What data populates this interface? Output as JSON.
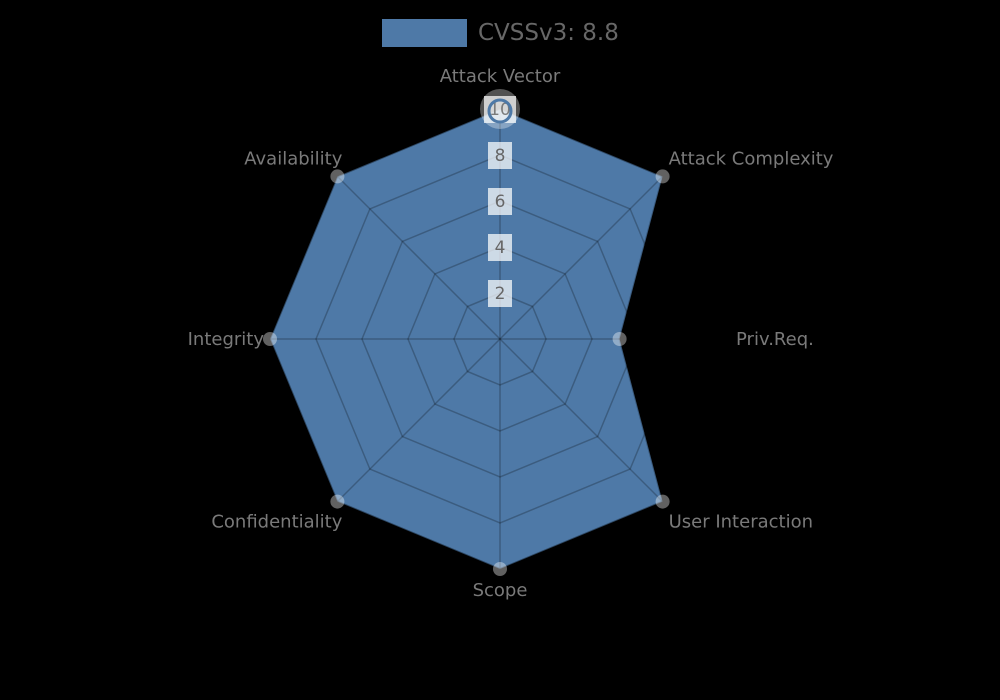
{
  "page": {
    "background": "#000000"
  },
  "legend": {
    "label": "CVSSv3: 8.8",
    "swatch_color": "#4e79a7",
    "text_color": "#676767"
  },
  "chart_data": {
    "type": "radar",
    "title": "",
    "categories": [
      "Attack Vector",
      "Attack Complexity",
      "Priv.Req.",
      "User Interaction",
      "Scope",
      "Confidentiality",
      "Integrity",
      "Availability"
    ],
    "series": [
      {
        "name": "CVSSv3: 8.8",
        "values": [
          10,
          10,
          5.2,
          10,
          10,
          10,
          10,
          10
        ]
      }
    ],
    "scale": {
      "min": 0,
      "max": 10,
      "step": 2,
      "tick_labels": [
        "2",
        "4",
        "6",
        "8",
        "10"
      ]
    },
    "legend_position": "top",
    "grid": true,
    "highlighted_point": "Attack Vector",
    "colors": {
      "series_fill": "#4e79a7",
      "series_border": "rgba(0,0,0,0.25)",
      "grid_line": "rgba(0,0,0,0.24)",
      "tick_backdrop": "rgba(255,255,255,0.72)",
      "tick_text": "#666666",
      "axis_label": "#7a7a7a",
      "marker": "rgba(255,255,255,0.38)",
      "highlight_halo": "rgba(255,255,255,0.32)",
      "highlight_ring": "#4e79a7"
    }
  }
}
